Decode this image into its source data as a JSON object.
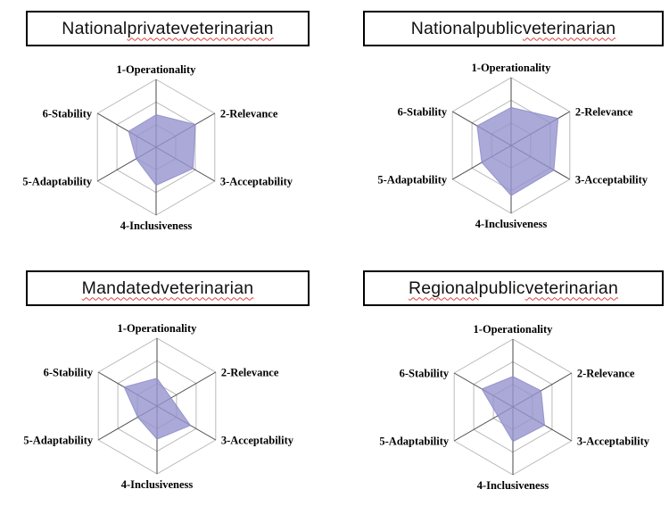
{
  "page": {
    "background_color": "#ffffff"
  },
  "colors": {
    "polygon_fill": "#9593ce",
    "polygon_stroke": "#817fc0",
    "grid_line": "#bbbbbb",
    "axis_line": "#4a4a4a",
    "title_border": "#000000",
    "title_text": "#111111",
    "axis_label_text": "#000000",
    "spellcheck_underline": "#e0413a"
  },
  "titles": [
    {
      "label": "National private veterinarian",
      "words": [
        {
          "text": "National",
          "spellcheck": false
        },
        {
          "text": "private",
          "spellcheck": true
        },
        {
          "text": "veterinarian",
          "spellcheck": true
        }
      ]
    },
    {
      "label": "National public veterinarian",
      "words": [
        {
          "text": "National",
          "spellcheck": false
        },
        {
          "text": "public",
          "spellcheck": false
        },
        {
          "text": "veterinarian",
          "spellcheck": true
        }
      ]
    },
    {
      "label": "Mandated veterinarian",
      "words": [
        {
          "text": "Mandated",
          "spellcheck": true
        },
        {
          "text": "veterinarian",
          "spellcheck": true
        }
      ]
    },
    {
      "label": "Regional public veterinarian",
      "words": [
        {
          "text": "Regional",
          "spellcheck": true
        },
        {
          "text": "public",
          "spellcheck": false
        },
        {
          "text": "veterinarian",
          "spellcheck": true
        }
      ]
    }
  ],
  "chart_data": {
    "type": "radar",
    "axes": [
      "1-Operationality",
      "2-Relevance",
      "3-Acceptability",
      "4-Inclusiveness",
      "5-Adaptability",
      "6-Stability"
    ],
    "scale": {
      "min": 0,
      "max": 1,
      "gridline_levels": [
        0.3333,
        0.6667,
        1.0
      ],
      "tick_labels_visible": false
    },
    "legend": "none",
    "charts": [
      {
        "title": "National private veterinarian",
        "values": [
          0.48,
          0.67,
          0.63,
          0.56,
          0.34,
          0.47
        ]
      },
      {
        "title": "National public veterinarian",
        "values": [
          0.56,
          0.8,
          0.73,
          0.74,
          0.5,
          0.58
        ]
      },
      {
        "title": "Mandated veterinarian",
        "values": [
          0.41,
          0.24,
          0.57,
          0.49,
          0.33,
          0.56
        ]
      },
      {
        "title": "Regional public veterinarian",
        "values": [
          0.45,
          0.48,
          0.54,
          0.51,
          0.26,
          0.53
        ]
      }
    ]
  }
}
